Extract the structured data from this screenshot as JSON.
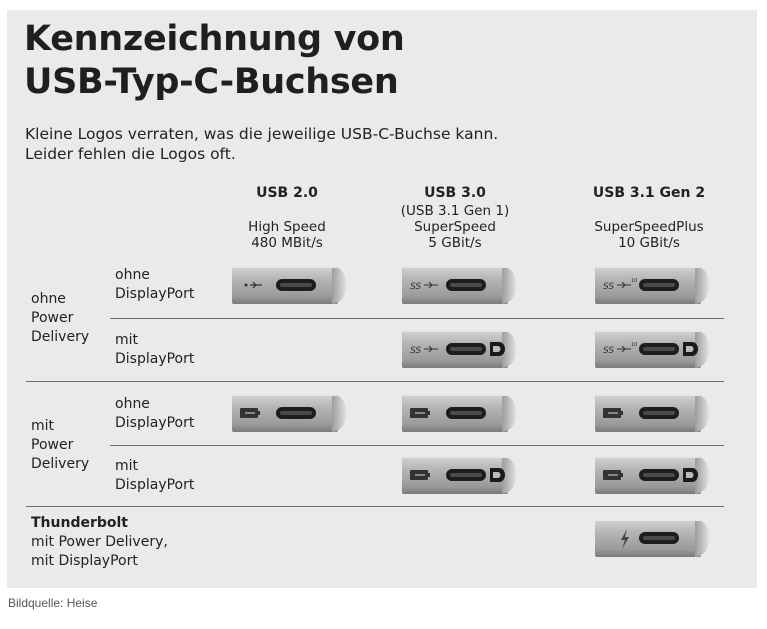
{
  "title_line1": "Kennzeichnung von",
  "title_line2": "USB-Typ-C-Buchsen",
  "subtitle_line1": "Kleine Logos verraten, was die jeweilige USB-C-Buchse kann.",
  "subtitle_line2": "Leider fehlen die Logos oft.",
  "columns": [
    {
      "name": "USB 2.0",
      "line1": "",
      "line2": "High Speed",
      "line3": "480 MBit/s"
    },
    {
      "name": "USB 3.0",
      "line1": "(USB 3.1 Gen 1)",
      "line2": "SuperSpeed",
      "line3": "5 GBit/s"
    },
    {
      "name": "USB 3.1 Gen 2",
      "line1": "",
      "line2": "SuperSpeedPlus",
      "line3": "10 GBit/s"
    }
  ],
  "groups": [
    {
      "line1": "ohne",
      "line2": "Power",
      "line3": "Delivery"
    },
    {
      "line1": "mit",
      "line2": "Power",
      "line3": "Delivery"
    }
  ],
  "sub_rows": [
    {
      "line1": "ohne",
      "line2": "DisplayPort"
    },
    {
      "line1": "mit",
      "line2": "DisplayPort"
    },
    {
      "line1": "ohne",
      "line2": "DisplayPort"
    },
    {
      "line1": "mit",
      "line2": "DisplayPort"
    }
  ],
  "thunderbolt": {
    "name": "Thunderbolt",
    "line2": "mit Power Delivery,",
    "line3": "mit DisplayPort"
  },
  "port_logos": {
    "usb2": "usb-trident-icon",
    "ss": "superspeed-icon",
    "ss10": "superspeedplus-icon",
    "battery": "battery-icon",
    "dp": "displayport-icon",
    "tb": "thunderbolt-icon"
  },
  "caption": "Bildquelle: Heise"
}
